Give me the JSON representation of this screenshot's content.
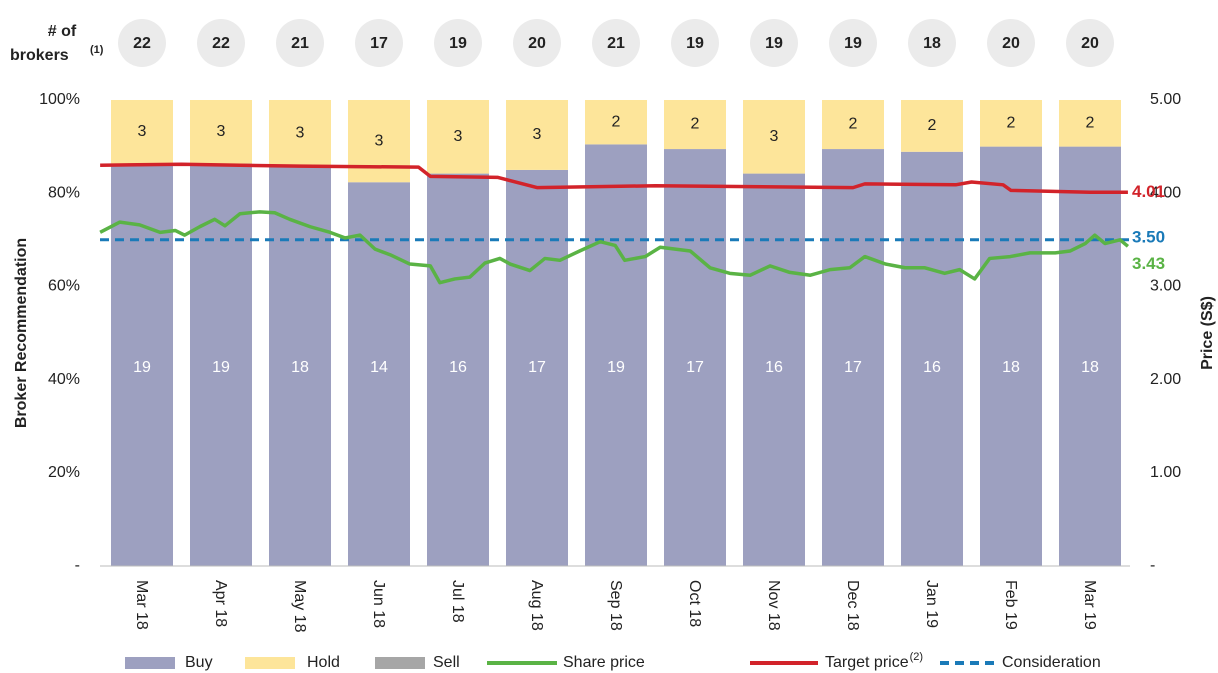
{
  "chart_data": {
    "type": "bar",
    "stacking": "percent",
    "categories": [
      "Mar 18",
      "Apr 18",
      "May 18",
      "Jun 18",
      "Jul 18",
      "Aug 18",
      "Sep 18",
      "Oct 18",
      "Nov 18",
      "Dec 18",
      "Jan 19",
      "Feb 19",
      "Mar 19"
    ],
    "broker_header": [
      "# of",
      "brokers"
    ],
    "broker_header_note": "(1)",
    "broker_counts": [
      22,
      22,
      21,
      17,
      19,
      20,
      21,
      19,
      19,
      19,
      18,
      20,
      20
    ],
    "ylabel": "Broker Recommendation",
    "y2label": "Price (S$)",
    "ylim": [
      0,
      100
    ],
    "yticks": [
      {
        "value": 0,
        "label": "-"
      },
      {
        "value": 20,
        "label": "20%"
      },
      {
        "value": 40,
        "label": "40%"
      },
      {
        "value": 60,
        "label": "60%"
      },
      {
        "value": 80,
        "label": "80%"
      },
      {
        "value": 100,
        "label": "100%"
      }
    ],
    "y2lim": [
      0,
      5
    ],
    "y2ticks": [
      {
        "value": 0,
        "label": "-"
      },
      {
        "value": 1,
        "label": "1.00"
      },
      {
        "value": 2,
        "label": "2.00"
      },
      {
        "value": 3,
        "label": "3.00"
      },
      {
        "value": 4,
        "label": "4.00"
      },
      {
        "value": 5,
        "label": "5.00"
      }
    ],
    "series": [
      {
        "name": "Buy",
        "color": "#9da0c0",
        "values": [
          19,
          19,
          18,
          14,
          16,
          17,
          19,
          17,
          16,
          17,
          16,
          18,
          18
        ]
      },
      {
        "name": "Hold",
        "color": "#fde59a",
        "values": [
          3,
          3,
          3,
          3,
          3,
          3,
          2,
          2,
          3,
          2,
          2,
          2,
          2
        ]
      },
      {
        "name": "Sell",
        "color": "#a6a6a6",
        "values": [
          0,
          0,
          0,
          0,
          0,
          0,
          0,
          0,
          0,
          0,
          0,
          0,
          0
        ]
      }
    ],
    "lines": [
      {
        "name": "Share price",
        "color": "#5ab345",
        "axis": "y2",
        "x": [
          -0.53,
          -0.28,
          -0.03,
          0.23,
          0.42,
          0.54,
          0.73,
          0.92,
          1.05,
          1.24,
          1.49,
          1.68,
          1.87,
          2.13,
          2.38,
          2.57,
          2.76,
          2.95,
          3.14,
          3.39,
          3.65,
          3.77,
          3.96,
          4.15,
          4.34,
          4.53,
          4.66,
          4.91,
          5.1,
          5.29,
          5.54,
          5.8,
          5.99,
          6.11,
          6.37,
          6.56,
          6.94,
          7.19,
          7.44,
          7.7,
          7.95,
          8.2,
          8.46,
          8.71,
          8.96,
          9.15,
          9.41,
          9.66,
          9.91,
          10.16,
          10.35,
          10.54,
          10.73,
          10.99,
          11.24,
          11.56,
          11.75,
          11.94,
          12.06,
          12.19,
          12.38,
          12.48
        ],
        "values": [
          3.58,
          3.69,
          3.66,
          3.58,
          3.6,
          3.55,
          3.64,
          3.72,
          3.65,
          3.78,
          3.8,
          3.79,
          3.72,
          3.64,
          3.58,
          3.52,
          3.55,
          3.4,
          3.34,
          3.24,
          3.22,
          3.04,
          3.08,
          3.1,
          3.25,
          3.3,
          3.24,
          3.17,
          3.3,
          3.28,
          3.38,
          3.48,
          3.44,
          3.28,
          3.32,
          3.42,
          3.38,
          3.2,
          3.14,
          3.12,
          3.22,
          3.15,
          3.12,
          3.18,
          3.2,
          3.32,
          3.24,
          3.2,
          3.2,
          3.14,
          3.18,
          3.08,
          3.3,
          3.32,
          3.36,
          3.36,
          3.38,
          3.46,
          3.55,
          3.46,
          3.5,
          3.43
        ]
      },
      {
        "name": "Target price",
        "note": "(2)",
        "color": "#d2232a",
        "axis": "y2",
        "x": [
          -0.53,
          0.5,
          2.0,
          3.5,
          3.65,
          4.5,
          5.0,
          6.5,
          9.0,
          9.15,
          10.3,
          10.5,
          10.9,
          11.0,
          12.0,
          12.48
        ],
        "values": [
          4.3,
          4.31,
          4.29,
          4.28,
          4.18,
          4.17,
          4.06,
          4.08,
          4.06,
          4.1,
          4.09,
          4.12,
          4.09,
          4.03,
          4.01,
          4.01
        ]
      }
    ],
    "reference_lines": [
      {
        "name": "Consideration",
        "color": "#1a7ab8",
        "axis": "y2",
        "value": 3.5,
        "label": "3.50"
      }
    ]
  }
}
